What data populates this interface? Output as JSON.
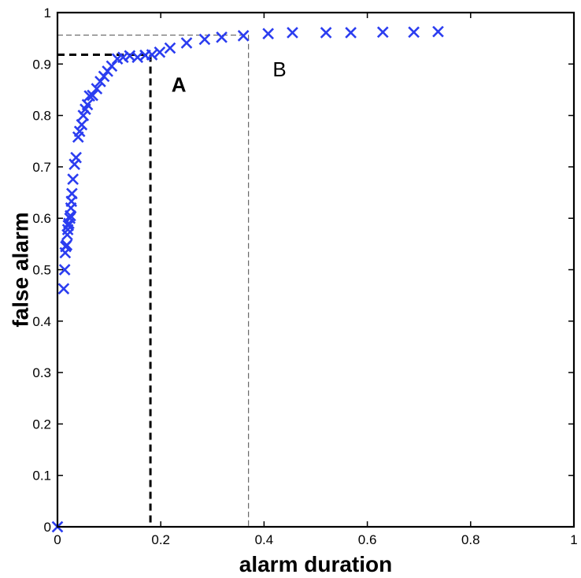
{
  "chart_data": {
    "type": "scatter",
    "title": "",
    "xlabel": "alarm duration",
    "ylabel": "false alarm",
    "xlim": [
      0,
      1
    ],
    "ylim": [
      0,
      1
    ],
    "grid": false,
    "marker": "x",
    "marker_color": "#2b3df0",
    "x_ticks": [
      "0",
      "0.2",
      "0.4",
      "0.6",
      "0.8",
      "1"
    ],
    "y_ticks": [
      "0",
      "0.1",
      "0.2",
      "0.3",
      "0.4",
      "0.5",
      "0.6",
      "0.7",
      "0.8",
      "0.9",
      "1"
    ],
    "series": [
      {
        "points": [
          [
            0.0,
            0.0
          ],
          [
            0.012,
            0.463
          ],
          [
            0.014,
            0.5
          ],
          [
            0.015,
            0.533
          ],
          [
            0.016,
            0.545
          ],
          [
            0.018,
            0.548
          ],
          [
            0.019,
            0.568
          ],
          [
            0.02,
            0.578
          ],
          [
            0.021,
            0.586
          ],
          [
            0.022,
            0.59
          ],
          [
            0.024,
            0.6
          ],
          [
            0.025,
            0.605
          ],
          [
            0.026,
            0.62
          ],
          [
            0.027,
            0.633
          ],
          [
            0.028,
            0.648
          ],
          [
            0.03,
            0.676
          ],
          [
            0.033,
            0.705
          ],
          [
            0.036,
            0.718
          ],
          [
            0.04,
            0.758
          ],
          [
            0.043,
            0.769
          ],
          [
            0.047,
            0.782
          ],
          [
            0.05,
            0.8
          ],
          [
            0.054,
            0.812
          ],
          [
            0.058,
            0.821
          ],
          [
            0.062,
            0.838
          ],
          [
            0.068,
            0.839
          ],
          [
            0.076,
            0.852
          ],
          [
            0.083,
            0.866
          ],
          [
            0.09,
            0.876
          ],
          [
            0.097,
            0.886
          ],
          [
            0.105,
            0.896
          ],
          [
            0.116,
            0.91
          ],
          [
            0.127,
            0.913
          ],
          [
            0.14,
            0.916
          ],
          [
            0.155,
            0.913
          ],
          [
            0.17,
            0.917
          ],
          [
            0.183,
            0.918
          ],
          [
            0.198,
            0.923
          ],
          [
            0.218,
            0.931
          ],
          [
            0.25,
            0.941
          ],
          [
            0.285,
            0.948
          ],
          [
            0.318,
            0.952
          ],
          [
            0.36,
            0.955
          ],
          [
            0.408,
            0.959
          ],
          [
            0.455,
            0.961
          ],
          [
            0.52,
            0.961
          ],
          [
            0.568,
            0.961
          ],
          [
            0.63,
            0.962
          ],
          [
            0.69,
            0.962
          ],
          [
            0.737,
            0.963
          ]
        ]
      }
    ],
    "reference_lines": [
      {
        "label": "A",
        "x": 0.18,
        "y": 0.918,
        "style": "thick-dashed"
      },
      {
        "label": "B",
        "x": 0.37,
        "y": 0.956,
        "style": "thin-dashed"
      }
    ],
    "annotations": [
      {
        "text": "A",
        "x": 0.235,
        "y": 0.86,
        "weight": "bold"
      },
      {
        "text": "B",
        "x": 0.43,
        "y": 0.89,
        "weight": "normal"
      }
    ]
  }
}
